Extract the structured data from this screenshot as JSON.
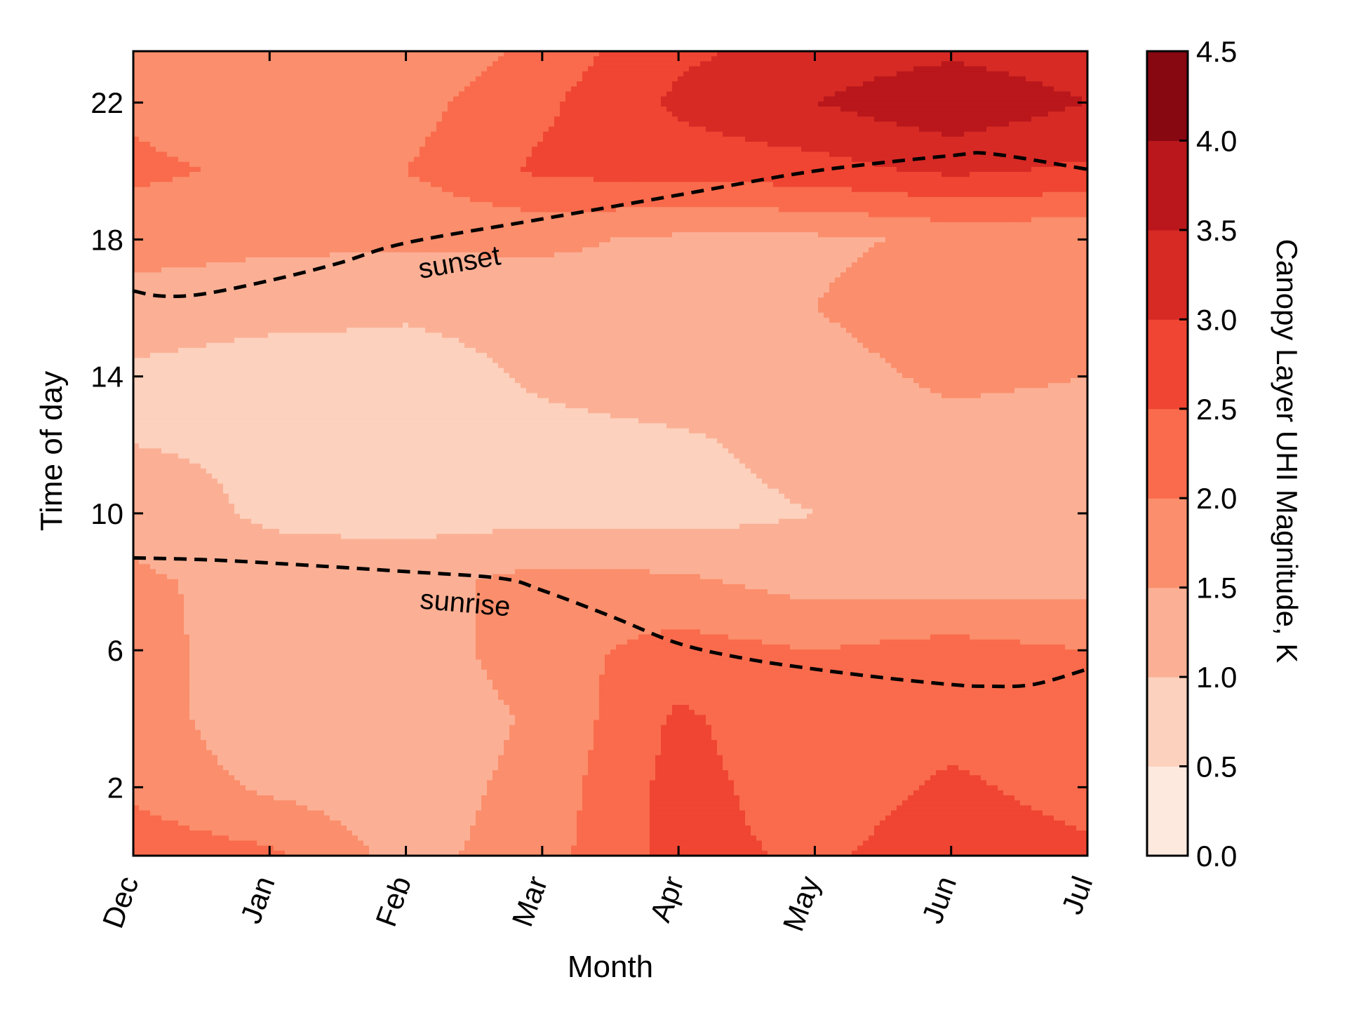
{
  "chart_data": {
    "type": "heatmap",
    "subtype": "filled-contour",
    "xlabel": "Month",
    "ylabel": "Time of day",
    "colorbar_label": "Canopy Layer UHI Magnitude, K",
    "x_ticks": [
      "Dec",
      "Jan",
      "Feb",
      "Mar",
      "Apr",
      "May",
      "Jun",
      "Jul"
    ],
    "x_range": [
      0,
      7
    ],
    "y_ticks": [
      2,
      6,
      10,
      14,
      18,
      22
    ],
    "y_range": [
      0,
      23.5
    ],
    "levels": [
      0.0,
      0.5,
      1.0,
      1.5,
      2.0,
      2.5,
      3.0,
      3.5,
      4.0,
      4.5
    ],
    "level_labels": [
      "0.0",
      "0.5",
      "1.0",
      "1.5",
      "2.0",
      "2.5",
      "3.0",
      "3.5",
      "4.0",
      "4.5"
    ],
    "colors": [
      "#fee9df",
      "#fcd1bd",
      "#fbb095",
      "#fb8e6c",
      "#f96b4c",
      "#ef4532",
      "#d72a25",
      "#b9171b",
      "#880812"
    ],
    "grid": false,
    "hours": [
      0,
      2,
      4,
      6,
      8,
      10,
      12,
      14,
      16,
      18,
      20,
      22,
      23.5
    ],
    "months": [
      0,
      1,
      2,
      3,
      4,
      5,
      6,
      7
    ],
    "uhi_values": [
      [
        2.3,
        2.1,
        1.3,
        1.8,
        2.7,
        2.4,
        2.8,
        2.6
      ],
      [
        1.9,
        1.4,
        1.2,
        1.7,
        2.7,
        2.2,
        2.6,
        2.3
      ],
      [
        1.8,
        1.1,
        1.1,
        1.6,
        2.6,
        2.1,
        2.3,
        2.1
      ],
      [
        1.7,
        1.2,
        1.2,
        1.8,
        2.2,
        2.0,
        2.2,
        2.0
      ],
      [
        1.6,
        1.3,
        1.3,
        1.7,
        1.6,
        1.3,
        1.3,
        1.3
      ],
      [
        1.3,
        0.9,
        0.8,
        0.8,
        0.8,
        1.0,
        1.2,
        1.2
      ],
      [
        1.0,
        0.9,
        0.7,
        0.8,
        0.9,
        1.2,
        1.3,
        1.3
      ],
      [
        0.9,
        0.7,
        0.7,
        1.1,
        1.3,
        1.3,
        1.6,
        1.5
      ],
      [
        1.3,
        1.2,
        1.1,
        1.2,
        1.4,
        1.5,
        1.8,
        1.6
      ],
      [
        1.7,
        1.6,
        1.6,
        1.6,
        1.4,
        1.4,
        1.6,
        1.6
      ],
      [
        2.1,
        1.9,
        2.0,
        2.6,
        2.7,
        2.8,
        3.1,
        2.9
      ],
      [
        1.9,
        1.7,
        1.8,
        2.4,
        3.1,
        3.5,
        3.9,
        3.5
      ],
      [
        1.7,
        1.6,
        1.5,
        2.2,
        2.9,
        3.2,
        3.4,
        3.2
      ]
    ],
    "curves": [
      {
        "label": "sunset",
        "x": [
          0,
          0.2,
          0.5,
          1,
          1.5,
          2,
          3,
          4,
          5,
          6,
          6.3,
          7
        ],
        "y": [
          16.5,
          16.35,
          16.4,
          16.8,
          17.3,
          17.9,
          18.6,
          19.3,
          20.0,
          20.45,
          20.5,
          20.05
        ]
      },
      {
        "label": "sunrise",
        "x": [
          0,
          0.5,
          1,
          2,
          2.7,
          3,
          3.5,
          4,
          4.5,
          5,
          5.5,
          6,
          6.25,
          6.6,
          7
        ],
        "y": [
          8.7,
          8.65,
          8.55,
          8.3,
          8.1,
          7.75,
          7.0,
          6.2,
          5.75,
          5.45,
          5.2,
          5.0,
          4.95,
          5.0,
          5.45
        ]
      }
    ]
  }
}
